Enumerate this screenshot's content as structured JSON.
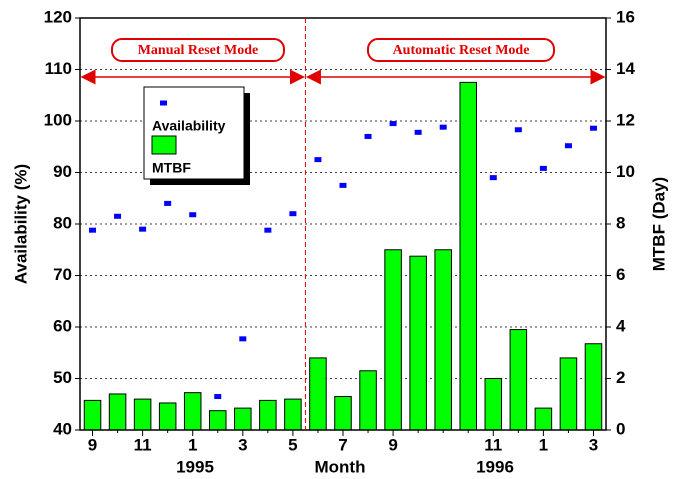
{
  "chart_data": {
    "type": "bar-scatter",
    "categories": [
      "9",
      null,
      "11",
      null,
      "1",
      null,
      "3",
      null,
      "5",
      null,
      "7",
      null,
      "9",
      null,
      null,
      null,
      "11",
      null,
      "1",
      null,
      "3"
    ],
    "x_label": "Month",
    "year_labels": [
      "1995",
      "1996"
    ],
    "y_label": "Availability (%)",
    "y2_label": "MTBF (Day)",
    "ylim": [
      40,
      120
    ],
    "yticks": [
      40,
      50,
      60,
      70,
      80,
      90,
      100,
      110,
      120
    ],
    "y2lim": [
      0,
      16
    ],
    "y2ticks": [
      0,
      2,
      4,
      6,
      8,
      10,
      12,
      14,
      16
    ],
    "grid": true,
    "annotations": [
      "Manual Reset Mode",
      "Automatic Reset Mode"
    ],
    "series": [
      {
        "name": "Availability",
        "kind": "scatter",
        "color": "#0000ff",
        "values": [
          78.8,
          81.5,
          79,
          84,
          81.8,
          46.5,
          57.7,
          78.8,
          82,
          92.5,
          87.5,
          97,
          99.5,
          97.8,
          98.8,
          null,
          89,
          98.3,
          90.8,
          95.2,
          98.6
        ]
      },
      {
        "name": "MTBF",
        "kind": "bar",
        "axis": "y2",
        "color": "#00ff00",
        "values": [
          1.15,
          1.4,
          1.2,
          1.05,
          1.45,
          0.75,
          0.85,
          1.15,
          1.2,
          2.8,
          1.3,
          2.3,
          7.0,
          6.75,
          7.0,
          13.5,
          2.0,
          3.9,
          0.85,
          2.8,
          3.35
        ]
      }
    ]
  }
}
